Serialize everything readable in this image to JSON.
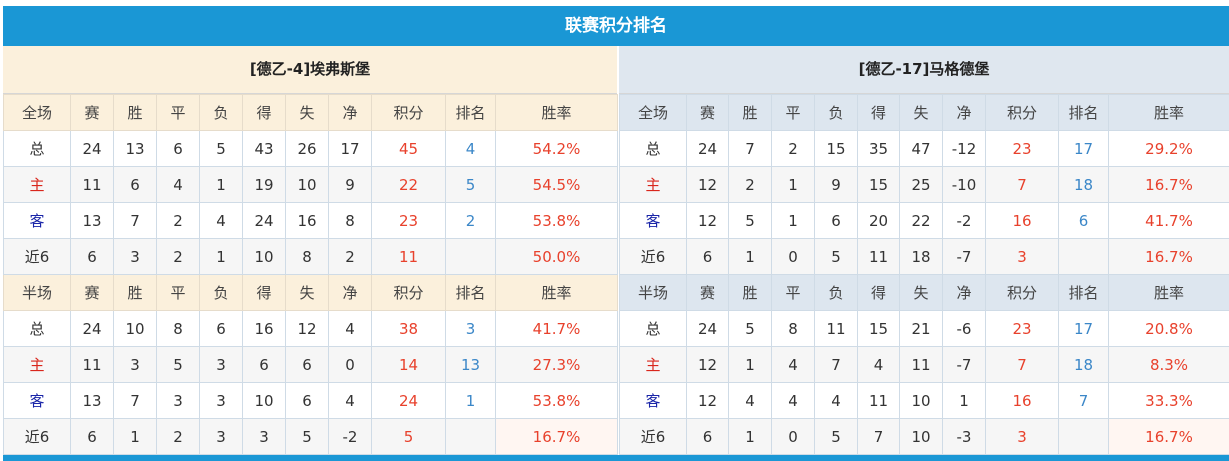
{
  "title": "联赛积分排名",
  "colors": {
    "accent": "#1a97d5",
    "points": "#e8412c",
    "rank": "#3b87c8",
    "home": "#d9261c",
    "away": "#1a25a8"
  },
  "columns": [
    "赛",
    "胜",
    "平",
    "负",
    "得",
    "失",
    "净",
    "积分",
    "排名",
    "胜率"
  ],
  "teams": [
    {
      "name": "[德乙-4]埃弗斯堡",
      "full": {
        "label": "全场",
        "rows": [
          [
            "总",
            "24",
            "13",
            "6",
            "5",
            "43",
            "26",
            "17",
            "45",
            "4",
            "54.2%"
          ],
          [
            "主",
            "11",
            "6",
            "4",
            "1",
            "19",
            "10",
            "9",
            "22",
            "5",
            "54.5%"
          ],
          [
            "客",
            "13",
            "7",
            "2",
            "4",
            "24",
            "16",
            "8",
            "23",
            "2",
            "53.8%"
          ],
          [
            "近6",
            "6",
            "3",
            "2",
            "1",
            "10",
            "8",
            "2",
            "11",
            "",
            "50.0%"
          ]
        ]
      },
      "half": {
        "label": "半场",
        "rows": [
          [
            "总",
            "24",
            "10",
            "8",
            "6",
            "16",
            "12",
            "4",
            "38",
            "3",
            "41.7%"
          ],
          [
            "主",
            "11",
            "3",
            "5",
            "3",
            "6",
            "6",
            "0",
            "14",
            "13",
            "27.3%"
          ],
          [
            "客",
            "13",
            "7",
            "3",
            "3",
            "10",
            "6",
            "4",
            "24",
            "1",
            "53.8%"
          ],
          [
            "近6",
            "6",
            "1",
            "2",
            "3",
            "3",
            "5",
            "-2",
            "5",
            "",
            "16.7%"
          ]
        ]
      }
    },
    {
      "name": "[德乙-17]马格德堡",
      "full": {
        "label": "全场",
        "rows": [
          [
            "总",
            "24",
            "7",
            "2",
            "15",
            "35",
            "47",
            "-12",
            "23",
            "17",
            "29.2%"
          ],
          [
            "主",
            "12",
            "2",
            "1",
            "9",
            "15",
            "25",
            "-10",
            "7",
            "18",
            "16.7%"
          ],
          [
            "客",
            "12",
            "5",
            "1",
            "6",
            "20",
            "22",
            "-2",
            "16",
            "6",
            "41.7%"
          ],
          [
            "近6",
            "6",
            "1",
            "0",
            "5",
            "11",
            "18",
            "-7",
            "3",
            "",
            "16.7%"
          ]
        ]
      },
      "half": {
        "label": "半场",
        "rows": [
          [
            "总",
            "24",
            "5",
            "8",
            "11",
            "15",
            "21",
            "-6",
            "23",
            "17",
            "20.8%"
          ],
          [
            "主",
            "12",
            "1",
            "4",
            "7",
            "4",
            "11",
            "-7",
            "7",
            "18",
            "8.3%"
          ],
          [
            "客",
            "12",
            "4",
            "4",
            "4",
            "11",
            "10",
            "1",
            "16",
            "7",
            "33.3%"
          ],
          [
            "近6",
            "6",
            "1",
            "0",
            "5",
            "7",
            "10",
            "-3",
            "3",
            "",
            "16.7%"
          ]
        ]
      }
    }
  ]
}
